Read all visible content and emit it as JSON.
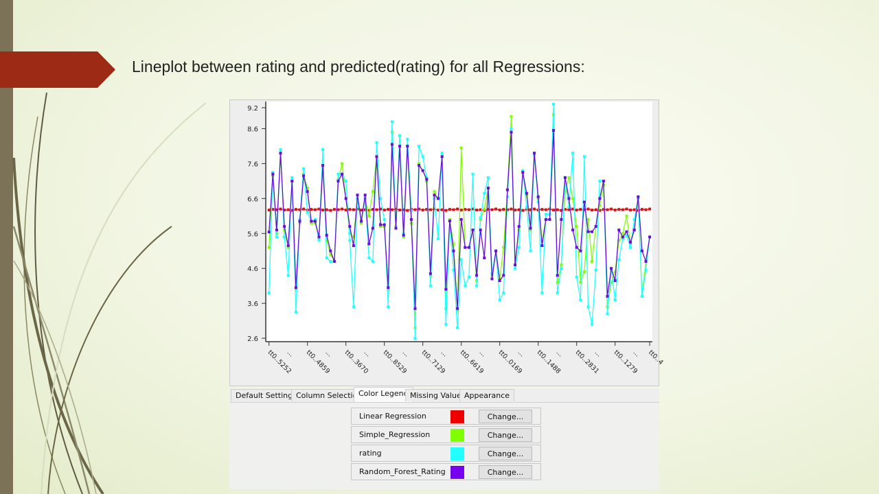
{
  "slide": {
    "title": "Lineplot between rating and predicted(rating) for all Regressions:",
    "banner_color": "#9c2a14",
    "strip_color": "#7b7257"
  },
  "tabs": [
    {
      "label": "Default Settings",
      "active": false
    },
    {
      "label": "Column Selection",
      "active": false
    },
    {
      "label": "Color Legend",
      "active": true
    },
    {
      "label": "Missing Values",
      "active": false
    },
    {
      "label": "Appearance",
      "active": false
    }
  ],
  "legend": {
    "items": [
      {
        "name": "Linear Regression",
        "color": "#ee0000",
        "button": "Change..."
      },
      {
        "name": "Simple_Regression",
        "color": "#80ff00",
        "button": "Change..."
      },
      {
        "name": "rating",
        "color": "#22ffff",
        "button": "Change..."
      },
      {
        "name": "Random_Forest_Rating",
        "color": "#7700ee",
        "button": "Change..."
      }
    ]
  },
  "chart_data": {
    "type": "line",
    "title": "",
    "xlabel": "",
    "ylabel": "",
    "ylim": [
      2.6,
      9.2
    ],
    "y_ticks": [
      "2.6",
      "3.6",
      "4.6",
      "5.6",
      "6.6",
      "7.6",
      "8.6",
      "9.2"
    ],
    "point_count": 100,
    "x_ticks": [
      {
        "index": 0,
        "label": "tt0..5252"
      },
      {
        "index": 5,
        "label": "..."
      },
      {
        "index": 10,
        "label": "tt0..4859"
      },
      {
        "index": 15,
        "label": "..."
      },
      {
        "index": 20,
        "label": "tt0..3670"
      },
      {
        "index": 25,
        "label": "..."
      },
      {
        "index": 30,
        "label": "tt0..8529"
      },
      {
        "index": 35,
        "label": "..."
      },
      {
        "index": 40,
        "label": "tt0..7129"
      },
      {
        "index": 45,
        "label": "..."
      },
      {
        "index": 50,
        "label": "tt0..6619"
      },
      {
        "index": 55,
        "label": "..."
      },
      {
        "index": 60,
        "label": "tt0..0169"
      },
      {
        "index": 65,
        "label": "..."
      },
      {
        "index": 70,
        "label": "tt0..1488"
      },
      {
        "index": 75,
        "label": "..."
      },
      {
        "index": 80,
        "label": "tt0..2831"
      },
      {
        "index": 85,
        "label": "..."
      },
      {
        "index": 90,
        "label": "tt0..1279"
      },
      {
        "index": 95,
        "label": "..."
      },
      {
        "index": 99,
        "label": "tt0..4"
      }
    ],
    "grid": false,
    "markers": "square",
    "series": [
      {
        "name": "Linear Regression",
        "color": "#dd1111",
        "values": [
          6.27,
          6.29,
          6.28,
          6.3,
          6.27,
          6.28,
          6.26,
          6.29,
          6.28,
          6.3,
          6.27,
          6.29,
          6.28,
          6.3,
          6.27,
          6.28,
          6.26,
          6.29,
          6.28,
          6.3,
          6.27,
          6.29,
          6.28,
          6.3,
          6.27,
          6.28,
          6.26,
          6.29,
          6.28,
          6.3,
          6.27,
          6.29,
          6.28,
          6.3,
          6.27,
          6.28,
          6.26,
          6.29,
          6.28,
          6.3,
          6.27,
          6.29,
          6.28,
          6.3,
          6.27,
          6.28,
          6.26,
          6.29,
          6.28,
          6.3,
          6.27,
          6.29,
          6.28,
          6.3,
          6.27,
          6.28,
          6.26,
          6.29,
          6.28,
          6.3,
          6.27,
          6.29,
          6.28,
          6.3,
          6.27,
          6.28,
          6.26,
          6.29,
          6.28,
          6.3,
          6.27,
          6.29,
          6.28,
          6.3,
          6.27,
          6.28,
          6.26,
          6.29,
          6.28,
          6.3,
          6.27,
          6.29,
          6.28,
          6.3,
          6.27,
          6.28,
          6.26,
          6.29,
          6.28,
          6.3,
          6.27,
          6.29,
          6.28,
          6.3,
          6.27,
          6.28,
          6.26,
          6.29,
          6.28,
          6.3
        ]
      },
      {
        "name": "Simple_Regression",
        "color": "#80ff00",
        "values": [
          5.2,
          7.25,
          5.6,
          7.9,
          5.7,
          5.2,
          7.1,
          4.0,
          5.9,
          7.3,
          6.9,
          5.9,
          5.9,
          5.45,
          7.5,
          5.4,
          5.0,
          4.8,
          7.15,
          7.6,
          6.6,
          5.6,
          5.5,
          6.6,
          5.9,
          6.6,
          6.1,
          6.8,
          7.8,
          5.8,
          5.8,
          4.0,
          8.5,
          5.8,
          8.4,
          5.5,
          8.1,
          5.9,
          2.9,
          7.6,
          7.4,
          7.1,
          4.4,
          6.8,
          6.6,
          7.8,
          3.45,
          6.0,
          5.3,
          3.4,
          8.05,
          5.2,
          5.2,
          5.7,
          4.25,
          6.0,
          6.3,
          6.9,
          4.4,
          5.1,
          4.3,
          5.2,
          6.85,
          8.95,
          4.7,
          5.7,
          7.35,
          6.7,
          5.7,
          7.9,
          6.6,
          5.4,
          6.0,
          6.0,
          9.0,
          4.2,
          4.7,
          6.8,
          7.2,
          6.6,
          5.8,
          4.2,
          4.5,
          6.0,
          4.8,
          5.8,
          6.4,
          7.0,
          3.5,
          4.2,
          4.5,
          5.4,
          5.6,
          6.1,
          5.3,
          5.7,
          6.6,
          3.8,
          4.8,
          5.5
        ]
      },
      {
        "name": "rating",
        "color": "#22ffff",
        "values": [
          3.9,
          7.35,
          5.5,
          8.0,
          5.5,
          4.4,
          7.2,
          3.35,
          6.0,
          7.45,
          6.2,
          5.95,
          6.0,
          5.4,
          8.0,
          4.9,
          4.8,
          4.8,
          7.3,
          7.3,
          7.1,
          5.4,
          3.5,
          6.6,
          5.95,
          6.6,
          4.9,
          4.8,
          8.2,
          6.6,
          6.0,
          3.5,
          8.8,
          5.75,
          8.4,
          5.6,
          8.3,
          6.25,
          2.6,
          8.1,
          7.8,
          7.2,
          4.1,
          6.6,
          5.45,
          7.9,
          3.0,
          5.96,
          4.55,
          2.9,
          4.85,
          4.1,
          4.35,
          7.3,
          4.1,
          6.05,
          6.75,
          7.2,
          4.45,
          5.1,
          3.7,
          3.9,
          6.65,
          8.6,
          4.6,
          5.2,
          7.4,
          6.35,
          5.1,
          7.85,
          6.5,
          3.9,
          6.15,
          6.15,
          9.3,
          3.9,
          4.6,
          7.2,
          6.35,
          7.9,
          4.35,
          3.7,
          7.8,
          3.5,
          3.0,
          4.55,
          7.1,
          7.1,
          3.3,
          4.6,
          3.7,
          4.85,
          5.45,
          5.55,
          5.2,
          6.0,
          6.65,
          3.8,
          4.55,
          5.5
        ]
      },
      {
        "name": "Random_Forest_Rating",
        "color": "#6a0fd8",
        "values": [
          5.64,
          7.3,
          5.7,
          7.9,
          5.8,
          5.25,
          7.1,
          4.05,
          5.95,
          7.25,
          6.8,
          5.95,
          5.95,
          5.5,
          7.55,
          5.55,
          5.1,
          4.8,
          7.1,
          7.3,
          6.6,
          5.8,
          5.25,
          6.7,
          5.95,
          6.7,
          5.3,
          5.75,
          7.8,
          5.85,
          5.85,
          4.05,
          8.15,
          5.75,
          8.1,
          5.55,
          8.1,
          6.0,
          3.45,
          7.55,
          7.4,
          7.15,
          4.45,
          6.7,
          6.6,
          7.8,
          4.0,
          5.96,
          5.1,
          3.45,
          6.0,
          5.2,
          5.2,
          5.7,
          4.4,
          5.7,
          4.9,
          6.9,
          4.3,
          5.1,
          4.25,
          4.4,
          6.85,
          8.5,
          4.7,
          5.8,
          7.35,
          6.75,
          5.75,
          7.9,
          6.65,
          5.25,
          6.0,
          6.0,
          8.55,
          4.4,
          6.0,
          7.2,
          6.6,
          5.7,
          5.2,
          5.1,
          6.5,
          5.65,
          5.65,
          5.8,
          6.6,
          7.1,
          3.8,
          4.6,
          4.25,
          5.7,
          5.5,
          5.65,
          5.35,
          5.7,
          6.65,
          5.1,
          4.8,
          5.5
        ]
      }
    ]
  }
}
